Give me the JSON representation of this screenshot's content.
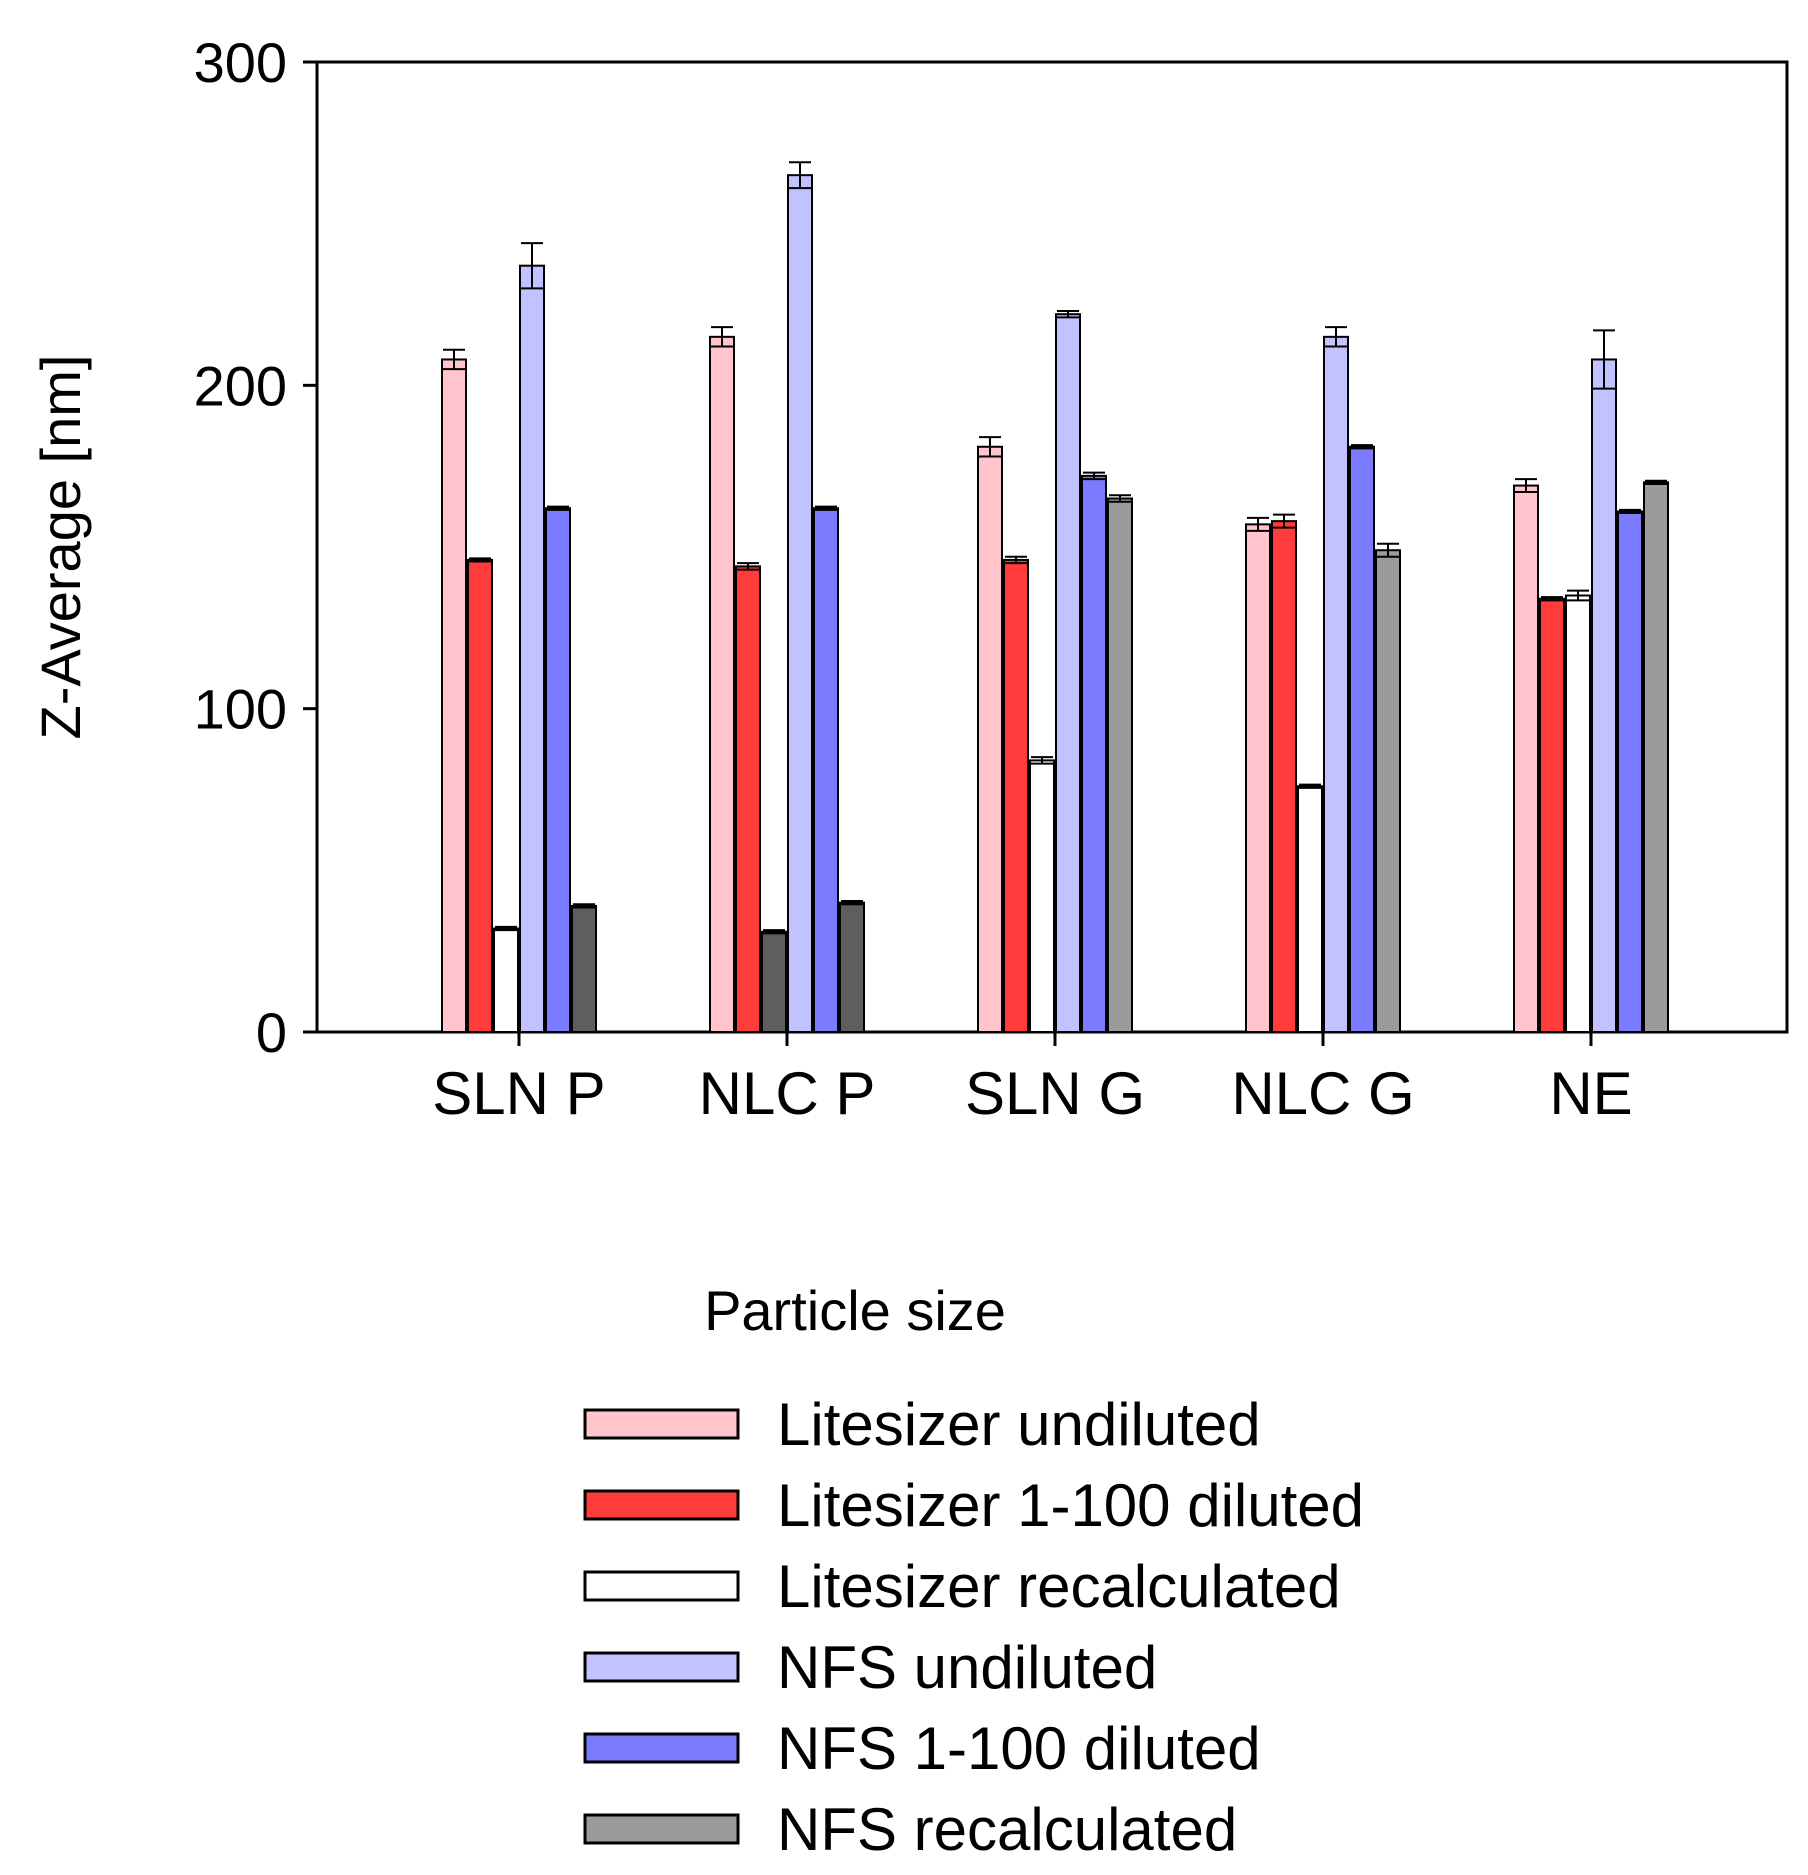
{
  "chart_data": {
    "type": "bar",
    "title": "",
    "xlabel": "",
    "ylabel": "Z-Average [nm]",
    "ylim": [
      0,
      300
    ],
    "yticks": [
      0,
      100,
      200,
      300
    ],
    "grid": false,
    "categories": [
      "SLN P",
      "NLC P",
      "SLN G",
      "NLC G",
      "NE"
    ],
    "legend": {
      "title": "Particle size",
      "placement": "below-plot"
    },
    "series": [
      {
        "name": "Litesizer undiluted",
        "color": "#ffc4cc",
        "values": [
          208,
          215,
          181,
          157,
          169
        ],
        "errors": [
          3,
          3,
          3,
          2,
          2
        ]
      },
      {
        "name": "Litesizer 1-100 diluted",
        "color": "#ff3b3b",
        "values": [
          146,
          144,
          146,
          158,
          134
        ],
        "errors": [
          0.5,
          1,
          1,
          2,
          0.5
        ]
      },
      {
        "name": "Litesizer recalculated",
        "color": "#ffffff",
        "values": [
          32,
          null,
          84,
          76,
          135
        ],
        "errors": [
          0.5,
          null,
          1,
          0.5,
          1.5
        ]
      },
      {
        "name": "NFS undiluted",
        "color": "#c2c2ff",
        "values": [
          237,
          265,
          222,
          215,
          208
        ],
        "errors": [
          7,
          4,
          1,
          3,
          9
        ]
      },
      {
        "name": "NFS 1-100 diluted",
        "color": "#7b7bff",
        "values": [
          162,
          162,
          172,
          181,
          161
        ],
        "errors": [
          0.5,
          0.5,
          1,
          0.5,
          0.5
        ]
      },
      {
        "name": "NFS recalculated",
        "color": "#9b9b9b",
        "values": [
          null,
          null,
          165,
          149,
          170
        ],
        "errors": [
          null,
          null,
          1,
          2,
          0.5
        ]
      }
    ],
    "extra_bars_note": "Dark grey bars at SLN P and NLC P drawn in their own slots",
    "extra_bars": [
      {
        "category": "SLN P",
        "slot": 5,
        "value": 39,
        "error": 0.5,
        "color": "#5e5e5e"
      },
      {
        "category": "NLC P",
        "slot": 2,
        "value": 31,
        "error": 0.5,
        "color": "#5e5e5e"
      },
      {
        "category": "NLC P",
        "slot": 5,
        "value": 40,
        "error": 0.5,
        "color": "#5e5e5e"
      }
    ]
  }
}
